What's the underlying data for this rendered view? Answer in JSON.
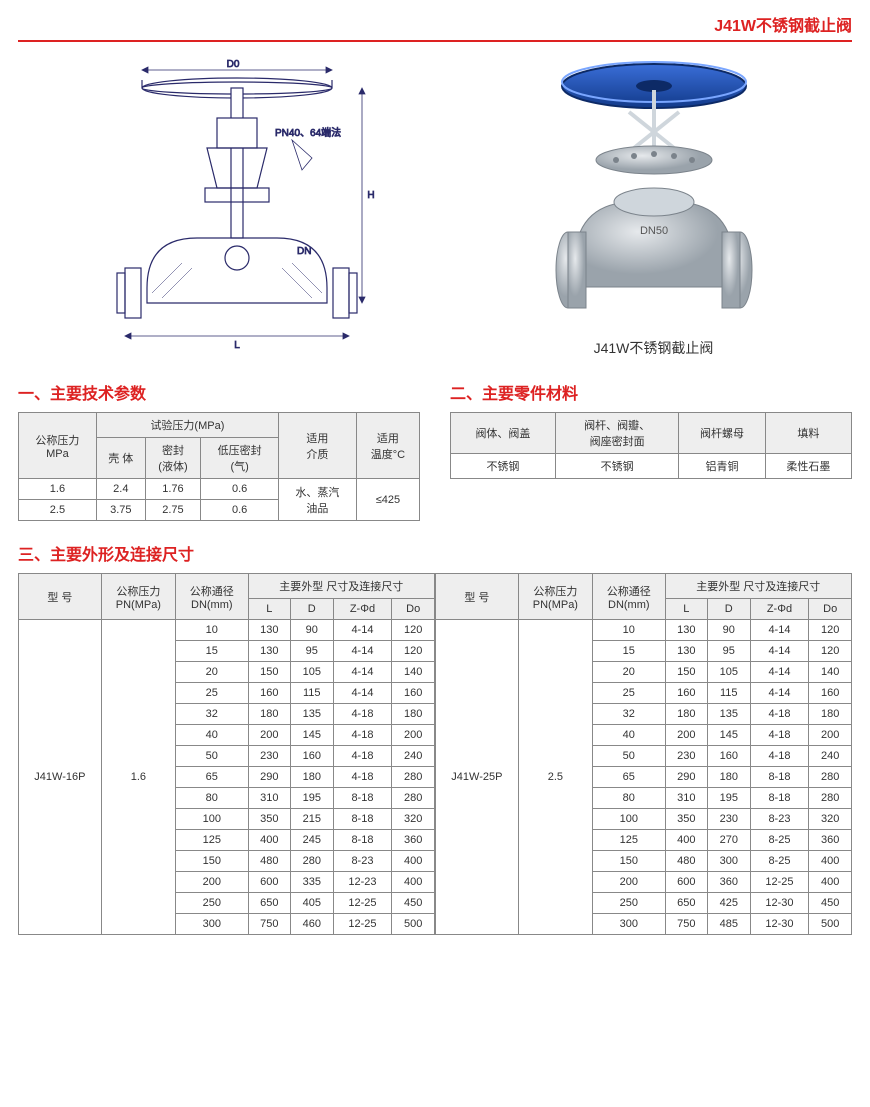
{
  "page_title": "J41W不锈钢截止阀",
  "drawing": {
    "label_D0": "D0",
    "label_H": "H",
    "label_DN": "DN",
    "label_L": "L",
    "label_note": "PN40、64端法"
  },
  "photo_caption": "J41W不锈钢截止阀",
  "section1": {
    "title": "一、主要技术参数",
    "headers": {
      "col_pressure": "公称压力\nMPa",
      "test_pressure": "试验压力(MPa)",
      "col_shell": "壳 体",
      "col_seal": "密封\n(液体)",
      "col_lowseal": "低压密封\n(气)",
      "col_medium": "适用\n介质",
      "col_temp": "适用\n温度°C"
    },
    "rows": [
      {
        "p": "1.6",
        "shell": "2.4",
        "seal": "1.76",
        "low": "0.6"
      },
      {
        "p": "2.5",
        "shell": "3.75",
        "seal": "2.75",
        "low": "0.6"
      }
    ],
    "medium": "水、蒸汽\n油品",
    "temp": "≤425"
  },
  "section2": {
    "title": "二、主要零件材料",
    "headers": [
      "阀体、阀盖",
      "阀杆、阀瓣、\n阀座密封面",
      "阀杆螺母",
      "填料"
    ],
    "row": [
      "不锈钢",
      "不锈钢",
      "铝青铜",
      "柔性石墨"
    ]
  },
  "section3": {
    "title": "三、主要外形及连接尺寸",
    "headers": {
      "model": "型 号",
      "pn": "公称压力\nPN(MPa)",
      "dn": "公称通径\nDN(mm)",
      "dims": "主要外型 尺寸及连接尺寸",
      "L": "L",
      "D": "D",
      "Zphi": "Z-Φd",
      "Do": "Do"
    },
    "left": {
      "model": "J41W-16P",
      "pn": "1.6",
      "rows": [
        [
          "10",
          "130",
          "90",
          "4-14",
          "120"
        ],
        [
          "15",
          "130",
          "95",
          "4-14",
          "120"
        ],
        [
          "20",
          "150",
          "105",
          "4-14",
          "140"
        ],
        [
          "25",
          "160",
          "115",
          "4-14",
          "160"
        ],
        [
          "32",
          "180",
          "135",
          "4-18",
          "180"
        ],
        [
          "40",
          "200",
          "145",
          "4-18",
          "200"
        ],
        [
          "50",
          "230",
          "160",
          "4-18",
          "240"
        ],
        [
          "65",
          "290",
          "180",
          "4-18",
          "280"
        ],
        [
          "80",
          "310",
          "195",
          "8-18",
          "280"
        ],
        [
          "100",
          "350",
          "215",
          "8-18",
          "320"
        ],
        [
          "125",
          "400",
          "245",
          "8-18",
          "360"
        ],
        [
          "150",
          "480",
          "280",
          "8-23",
          "400"
        ],
        [
          "200",
          "600",
          "335",
          "12-23",
          "400"
        ],
        [
          "250",
          "650",
          "405",
          "12-25",
          "450"
        ],
        [
          "300",
          "750",
          "460",
          "12-25",
          "500"
        ]
      ]
    },
    "right": {
      "model": "J41W-25P",
      "pn": "2.5",
      "rows": [
        [
          "10",
          "130",
          "90",
          "4-14",
          "120"
        ],
        [
          "15",
          "130",
          "95",
          "4-14",
          "120"
        ],
        [
          "20",
          "150",
          "105",
          "4-14",
          "140"
        ],
        [
          "25",
          "160",
          "115",
          "4-14",
          "160"
        ],
        [
          "32",
          "180",
          "135",
          "4-18",
          "180"
        ],
        [
          "40",
          "200",
          "145",
          "4-18",
          "200"
        ],
        [
          "50",
          "230",
          "160",
          "4-18",
          "240"
        ],
        [
          "65",
          "290",
          "180",
          "8-18",
          "280"
        ],
        [
          "80",
          "310",
          "195",
          "8-18",
          "280"
        ],
        [
          "100",
          "350",
          "230",
          "8-23",
          "320"
        ],
        [
          "125",
          "400",
          "270",
          "8-25",
          "360"
        ],
        [
          "150",
          "480",
          "300",
          "8-25",
          "400"
        ],
        [
          "200",
          "600",
          "360",
          "12-25",
          "400"
        ],
        [
          "250",
          "650",
          "425",
          "12-30",
          "450"
        ],
        [
          "300",
          "750",
          "485",
          "12-30",
          "500"
        ]
      ]
    }
  },
  "colors": {
    "accent": "#d22",
    "handwheel": "#1a4da8",
    "steel": "#bfc6cc",
    "line": "#2a2a6a"
  }
}
